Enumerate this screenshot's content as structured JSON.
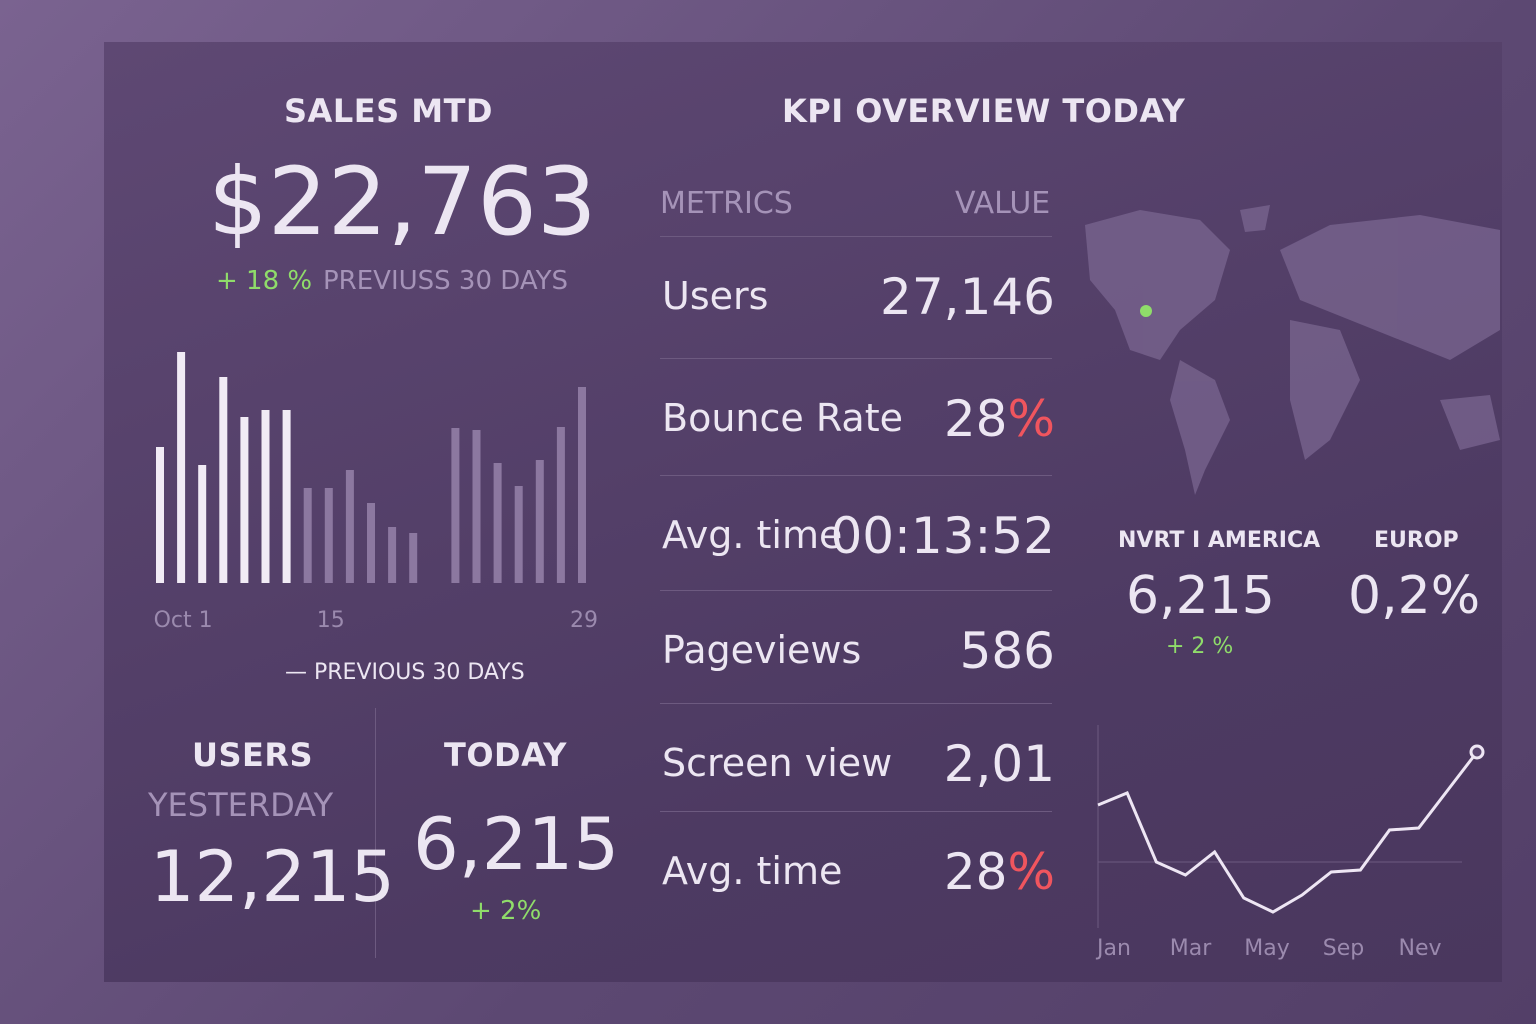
{
  "sales": {
    "title": "SALES MTD",
    "amount": "$22,763",
    "change": "+ 18 %",
    "period": "PREVIUSS 30 DAYS"
  },
  "bar_chart": {
    "type": "bar",
    "categories": [
      null,
      "Oct 1",
      null,
      null,
      null,
      null,
      null,
      null,
      "15",
      null,
      null,
      null,
      null,
      null,
      null,
      null,
      null,
      null,
      null,
      null,
      "29"
    ],
    "values": [
      136,
      231,
      118,
      206,
      166,
      173,
      173,
      95,
      95,
      113,
      80,
      56,
      50,
      null,
      155,
      153,
      120,
      97,
      123,
      156,
      196
    ],
    "colors": [
      "#f1ebf5",
      "#f1ebf5",
      "#f1ebf5",
      "#f1ebf5",
      "#f1ebf5",
      "#f1ebf5",
      "#f1ebf5",
      "#8c78a0",
      "#8c78a0",
      "#8c78a0",
      "#8c78a0",
      "#8c78a0",
      "#8c78a0",
      "#8c78a0",
      "#8c78a0",
      "#8c78a0",
      "#8c78a0",
      "#8c78a0",
      "#8c78a0",
      "#8c78a0",
      "#8c78a0"
    ],
    "legend": "PREVIOUS 30 DAYS"
  },
  "users": {
    "title": "USERS",
    "label": "YESTERDAY",
    "value": "12,215"
  },
  "today": {
    "title": "TODAY",
    "value": "6,215",
    "change": "+ 2%"
  },
  "kpi": {
    "title": "KPI OVERVIEW TODAY",
    "header": [
      "METRICS",
      "VALUE"
    ],
    "rows": [
      {
        "metric": "Users",
        "value": "27,146"
      },
      {
        "metric": "Bounce Rate",
        "value": "28",
        "suffix": "%"
      },
      {
        "metric": "Avg. time",
        "value": "00:13:52"
      },
      {
        "metric": "Pageviews",
        "value": "586"
      },
      {
        "metric": "Screen view",
        "value": "2,01"
      },
      {
        "metric": "Avg. time",
        "value": "28",
        "suffix": "%"
      }
    ]
  },
  "regions": [
    {
      "name": "NVRT I AMERICA",
      "value": "6,215",
      "change": "+ 2 %"
    },
    {
      "name": "EUROP",
      "value": "0,2%"
    }
  ],
  "line_chart": {
    "type": "line",
    "values": [
      123,
      135,
      66,
      53,
      76,
      30,
      16,
      33,
      56,
      58,
      98,
      100,
      138,
      176
    ],
    "x_labels": [
      "Jan",
      "Mar",
      "May",
      "Sep",
      "Nev"
    ],
    "color": "#eee6f4"
  }
}
